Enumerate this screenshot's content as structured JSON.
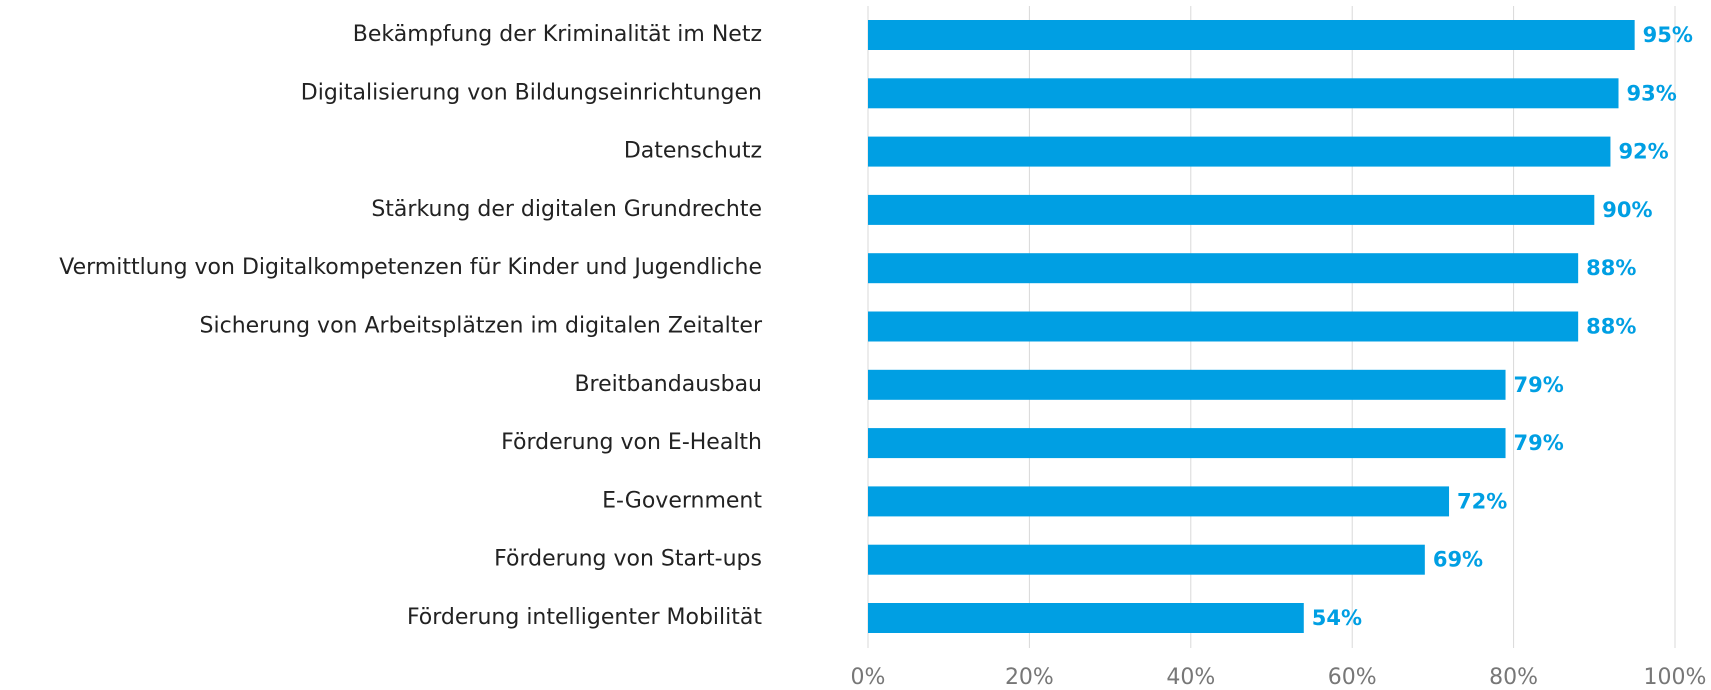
{
  "chart_data": {
    "type": "bar",
    "orientation": "horizontal",
    "categories": [
      "Bekämpfung der Kriminalität im Netz",
      "Digitalisierung von Bildungseinrichtungen",
      "Datenschutz",
      "Stärkung der digitalen Grundrechte",
      "Vermittlung von Digitalkompetenzen für Kinder und Jugendliche",
      "Sicherung von Arbeitsplätzen im digitalen Zeitalter",
      "Breitbandausbau",
      "Förderung von E-Health",
      "E-Government",
      "Förderung von Start-ups",
      "Förderung intelligenter Mobilität"
    ],
    "values": [
      95,
      93,
      92,
      90,
      88,
      88,
      79,
      79,
      72,
      69,
      54
    ],
    "value_labels": [
      "95%",
      "93%",
      "92%",
      "90%",
      "88%",
      "88%",
      "79%",
      "79%",
      "72%",
      "69%",
      "54%"
    ],
    "color": "#009fe3",
    "xlim": [
      0,
      100
    ],
    "xticks": [
      {
        "value": 0,
        "label": "0%"
      },
      {
        "value": 20,
        "label": "20%"
      },
      {
        "value": 40,
        "label": "40%"
      },
      {
        "value": 60,
        "label": "60%"
      },
      {
        "value": 80,
        "label": "80%"
      },
      {
        "value": 100,
        "label": "100%"
      }
    ],
    "grid": true
  }
}
